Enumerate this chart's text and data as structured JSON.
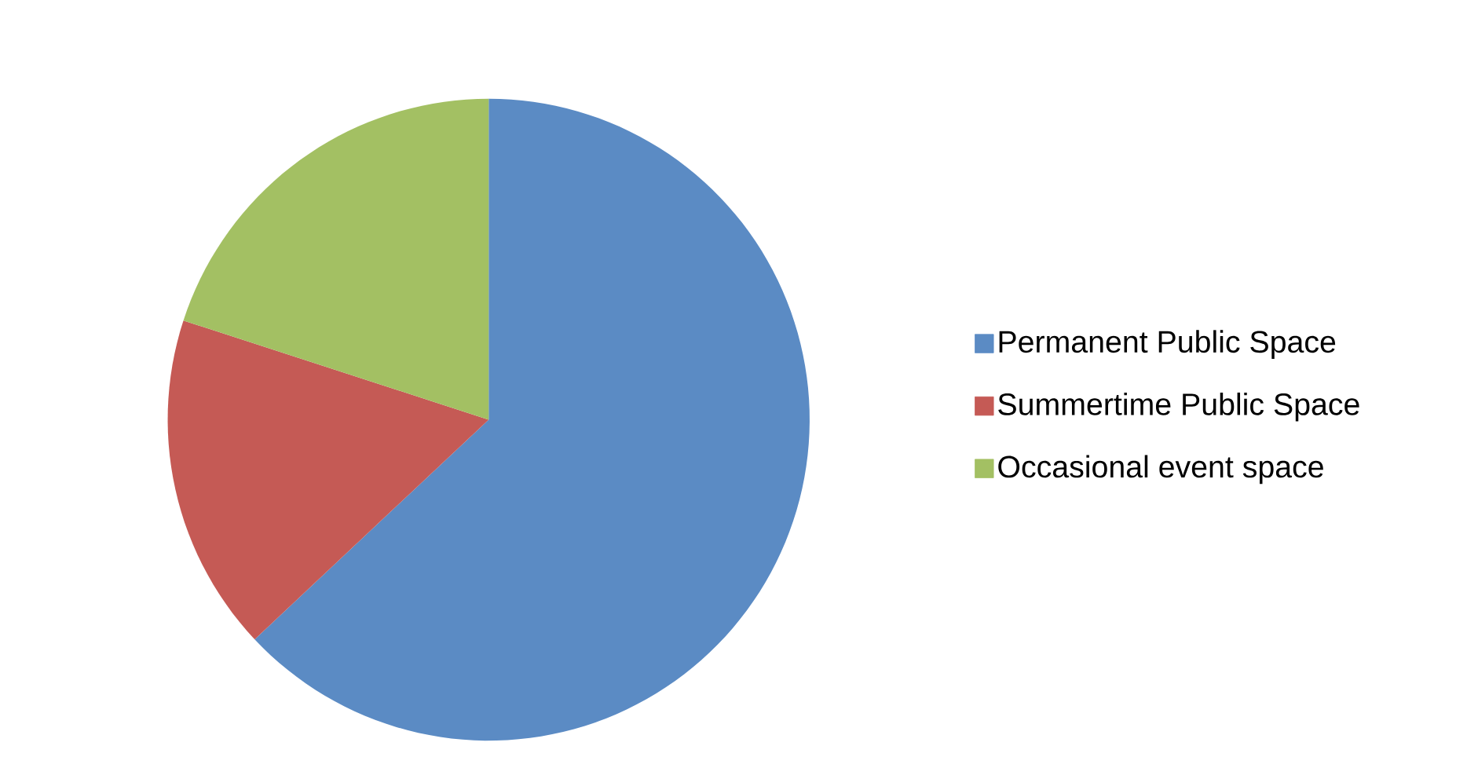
{
  "chart_data": {
    "type": "pie",
    "categories": [
      "Permanent Public Space",
      "Summertime Public Space",
      "Occasional event space"
    ],
    "values": [
      63,
      17,
      20
    ],
    "colors": [
      "#5b8bc4",
      "#c55a55",
      "#a3c063"
    ],
    "legend": "right"
  }
}
